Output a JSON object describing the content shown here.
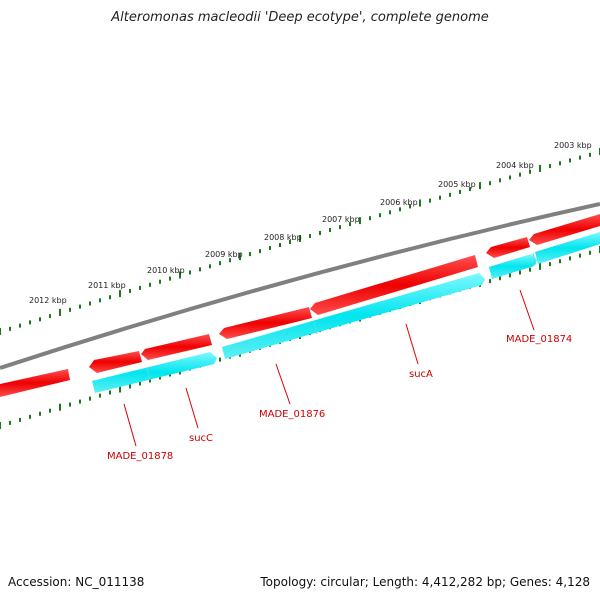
{
  "title": "Alteromonas macleodii 'Deep ecotype', complete genome",
  "footer": {
    "accession": "Accession: NC_011138",
    "summary": "Topology: circular; Length: 4,412,282 bp; Genes: 4,128"
  },
  "colors": {
    "forward_gene": "#ff0000",
    "reverse_gene": "#00e5ee",
    "backbone": "#808080",
    "ticks": "#1a7a1a",
    "label_text": "#cc0000",
    "label_line": "#dd0000"
  },
  "scale_ticks": [
    "2003 kbp",
    "2004 kbp",
    "2005 kbp",
    "2006 kbp",
    "2007 kbp",
    "2008 kbp",
    "2009 kbp",
    "2010 kbp",
    "2011 kbp",
    "2012 kbp"
  ],
  "gene_labels": [
    "MADE_01874",
    "sucA",
    "MADE_01876",
    "sucC",
    "MADE_01878"
  ]
}
